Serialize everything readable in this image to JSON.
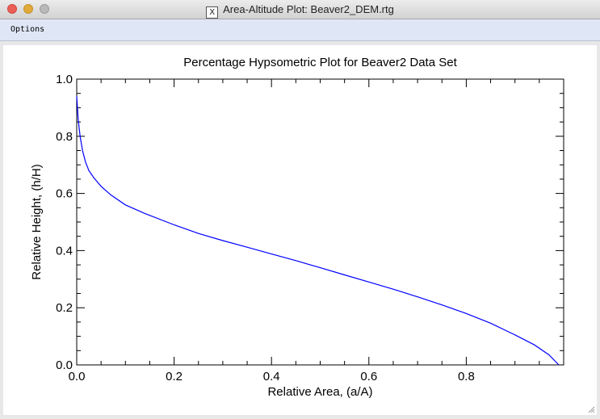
{
  "window": {
    "title": "Area-Altitude Plot: Beaver2_DEM.rtg",
    "app_icon": "x11-icon"
  },
  "menu": {
    "options_label": "Options"
  },
  "chart_data": {
    "type": "line",
    "title": "Percentage Hypsometric Plot for Beaver2 Data Set",
    "xlabel": "Relative Area, (a/A)",
    "ylabel": "Relative Height, (h/H)",
    "xlim": [
      0.0,
      1.0
    ],
    "ylim": [
      0.0,
      1.0
    ],
    "x_ticks": [
      "0.0",
      "0.2",
      "0.4",
      "0.6",
      "0.8"
    ],
    "y_ticks": [
      "0.0",
      "0.2",
      "0.4",
      "0.6",
      "0.8",
      "1.0"
    ],
    "grid": false,
    "series": [
      {
        "color": "#0000ff",
        "x": [
          0.0,
          0.003,
          0.007,
          0.012,
          0.018,
          0.025,
          0.035,
          0.05,
          0.07,
          0.1,
          0.14,
          0.2,
          0.25,
          0.3,
          0.35,
          0.4,
          0.45,
          0.5,
          0.55,
          0.6,
          0.65,
          0.7,
          0.75,
          0.8,
          0.85,
          0.9,
          0.94,
          0.97,
          0.99
        ],
        "y": [
          0.94,
          0.86,
          0.8,
          0.75,
          0.71,
          0.68,
          0.655,
          0.625,
          0.595,
          0.56,
          0.53,
          0.49,
          0.46,
          0.435,
          0.412,
          0.388,
          0.365,
          0.34,
          0.315,
          0.29,
          0.265,
          0.238,
          0.21,
          0.18,
          0.146,
          0.105,
          0.07,
          0.035,
          0.0
        ]
      }
    ]
  }
}
